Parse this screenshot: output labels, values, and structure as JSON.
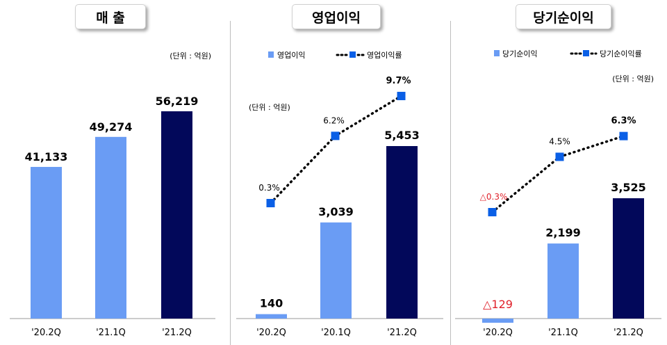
{
  "colors": {
    "light_bar": "#6a9cf4",
    "dark_bar": "#02085a",
    "line_marker": "#0a5fe6",
    "negative": "#e0202a"
  },
  "unit_label": "(단위 : 억원)",
  "x_categories": {
    "revenue": [
      "'20.2Q",
      "'21.1Q",
      "'21.2Q"
    ],
    "operating": [
      "'20.2Q",
      "'20.1Q",
      "'21.2Q"
    ],
    "net": [
      "'20.2Q",
      "'21.1Q",
      "'21.2Q"
    ]
  },
  "chart_data": [
    {
      "type": "bar",
      "title": "매 출",
      "unit": "(단위 : 억원)",
      "categories": [
        "'20.2Q",
        "'21.1Q",
        "'21.2Q"
      ],
      "values": [
        41133,
        49274,
        56219
      ],
      "value_labels": [
        "41,133",
        "49,274",
        "56,219"
      ]
    },
    {
      "type": "bar",
      "title": "영업이익",
      "unit": "(단위 : 억원)",
      "categories": [
        "'20.2Q",
        "'20.1Q",
        "'21.2Q"
      ],
      "series": [
        {
          "name": "영업이익",
          "type": "bar",
          "values": [
            140,
            3039,
            5453
          ],
          "labels": [
            "140",
            "3,039",
            "5,453"
          ]
        },
        {
          "name": "영업이익률",
          "type": "line",
          "values": [
            0.3,
            6.2,
            9.7
          ],
          "labels": [
            "0.3%",
            "6.2%",
            "9.7%"
          ]
        }
      ]
    },
    {
      "type": "bar",
      "title": "당기순이익",
      "unit": "(단위 : 억원)",
      "categories": [
        "'20.2Q",
        "'21.1Q",
        "'21.2Q"
      ],
      "series": [
        {
          "name": "당기순이익",
          "type": "bar",
          "values": [
            -129,
            2199,
            3525
          ],
          "labels": [
            "△129",
            "2,199",
            "3,525"
          ]
        },
        {
          "name": "당기순이익률",
          "type": "line",
          "values": [
            -0.3,
            4.5,
            6.3
          ],
          "labels": [
            "△0.3%",
            "4.5%",
            "6.3%"
          ]
        }
      ]
    }
  ]
}
